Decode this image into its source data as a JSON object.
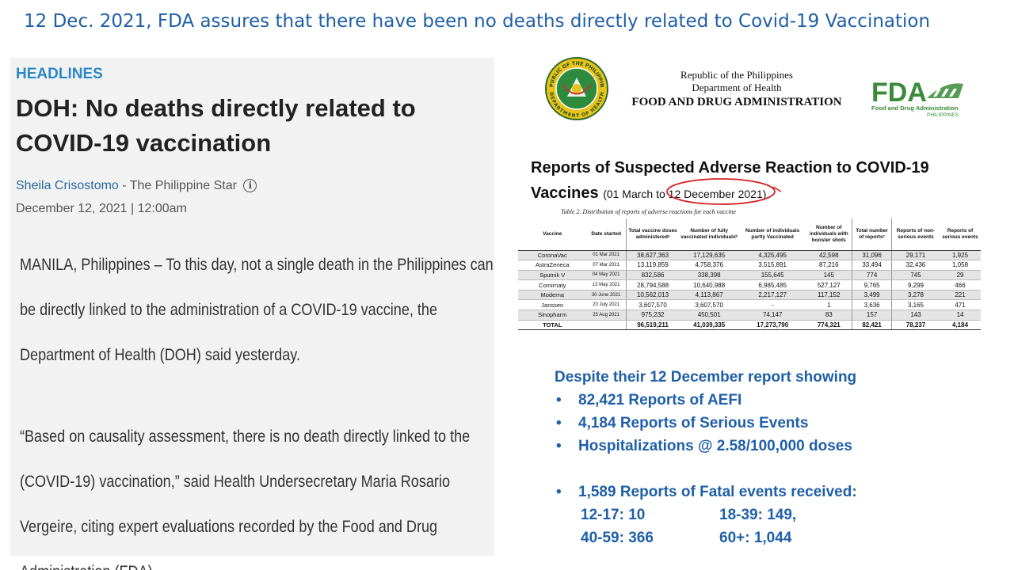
{
  "slide_title": "12 Dec. 2021, FDA assures that there have been no deaths directly related to Covid-19 Vaccination",
  "article": {
    "kicker": "HEADLINES",
    "headline": "DOH: No deaths directly related to COVID-19 vaccination",
    "author": "Sheila Crisostomo",
    "publication": " - The Philippine Star",
    "info_icon_glyph": "i",
    "date": "December 12, 2021 | 12:00am",
    "paragraph1": "MANILA, Philippines – To this day, not a single death in the Philippines can be directly linked to the administration of a COVID-19 vaccine, the Department of Health (DOH) said yesterday.",
    "paragraph2": "“Based on causality assessment, there is no death directly linked to the (COVID-19) vaccination,” said Health Undersecretary Maria Rosario Vergeire, citing expert evaluations recorded by the Food and Drug Administration (FDA)."
  },
  "agency": {
    "line1": "Republic of the Philippines",
    "line2": "Department of Health",
    "line3": "FOOD AND DRUG ADMINISTRATION",
    "seal_top_text": "REPUBLIC OF THE PHILIPPINES",
    "seal_bottom_text": "DEPARTMENT OF HEALTH",
    "logo_text": "FDA",
    "logo_sub1": "Food and Drug Administration",
    "logo_sub2": "PHILIPPINES",
    "logo_color": "#3a8a3a"
  },
  "report": {
    "title_line1": "Reports of Suspected Adverse Reaction to COVID-19",
    "title_line2": "Vaccines",
    "range_prefix": "(01 March to ",
    "range_date": "12 December 2021)",
    "circle_color": "#d42020"
  },
  "table": {
    "caption": "Table 2. Distribution of reports of adverse reactions for each vaccine",
    "headers": [
      "Vaccine",
      "Date started",
      "Total vaccine doses administeredᵃ",
      "Number of fully vaccinated individualsᵇ",
      "Number of individuals partly Vaccinated",
      "Number of individuals with booster shots",
      "Total number of reportsᶜ",
      "Reports of non-serious events",
      "Reports of serious events"
    ],
    "rows": [
      [
        "CoronaVac",
        "01 Mar 2021",
        "38,627,363",
        "17,129,635",
        "4,325,495",
        "42,598",
        "31,096",
        "29,171",
        "1,925"
      ],
      [
        "AstraZeneca",
        "07 Mar 2021",
        "13,119,859",
        "4,758,376",
        "3,515,891",
        "87,216",
        "33,494",
        "32,436",
        "1,058"
      ],
      [
        "Sputnik V",
        "04 May 2021",
        "832,586",
        "338,398",
        "155,645",
        "145",
        "774",
        "745",
        "29"
      ],
      [
        "Comirnaty",
        "13 May 2021",
        "28,794,588",
        "10,640,988",
        "6,985,485",
        "527,127",
        "9,765",
        "9,299",
        "466"
      ],
      [
        "Moderna",
        "30 June 2021",
        "10,562,013",
        "4,113,867",
        "2,217,127",
        "117,152",
        "3,499",
        "3,278",
        "221"
      ],
      [
        "Janssen",
        "20 July 2021",
        "3,607,570",
        "3,607,570",
        "-",
        "1",
        "3,636",
        "3,165",
        "471"
      ],
      [
        "Sinopharm",
        "25 Aug 2021",
        "975,232",
        "450,501",
        "74,147",
        "83",
        "157",
        "143",
        "14"
      ]
    ],
    "total": [
      "TOTAL",
      "",
      "96,519,211",
      "41,039,335",
      "17,273,790",
      "774,321",
      "82,421",
      "78,237",
      "4,184"
    ]
  },
  "notes": {
    "intro": "Despite their 12 December report showing",
    "bullets": [
      "82,421 Reports of AEFI",
      "4,184 Reports of Serious Events",
      "Hospitalizations @ 2.58/100,000  doses"
    ],
    "fatal": "1,589 Reports of Fatal events received:",
    "ages": [
      "12-17: 10",
      "18-39: 149,",
      "40-59: 366",
      "60+: 1,044"
    ],
    "color": "#1f5fa8"
  }
}
